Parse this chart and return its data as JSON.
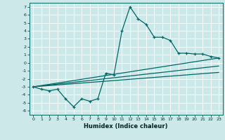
{
  "title": "",
  "xlabel": "Humidex (Indice chaleur)",
  "bg_color": "#cce8e8",
  "grid_color": "#ffffff",
  "line_color": "#006666",
  "xlim": [
    -0.5,
    23.5
  ],
  "ylim": [
    -6.5,
    7.5
  ],
  "xticks": [
    0,
    1,
    2,
    3,
    4,
    5,
    6,
    7,
    8,
    9,
    10,
    11,
    12,
    13,
    14,
    15,
    16,
    17,
    18,
    19,
    20,
    21,
    22,
    23
  ],
  "yticks": [
    -6,
    -5,
    -4,
    -3,
    -2,
    -1,
    0,
    1,
    2,
    3,
    4,
    5,
    6,
    7
  ],
  "series1_x": [
    0,
    1,
    2,
    3,
    4,
    5,
    6,
    7,
    8,
    9,
    10,
    11,
    12,
    13,
    14,
    15,
    16,
    17,
    18,
    19,
    20,
    21,
    22,
    23
  ],
  "series1_y": [
    -3.0,
    -3.3,
    -3.5,
    -3.3,
    -4.5,
    -5.5,
    -4.5,
    -4.8,
    -4.5,
    -1.3,
    -1.5,
    4.0,
    7.0,
    5.5,
    4.8,
    3.2,
    3.2,
    2.8,
    1.2,
    1.2,
    1.1,
    1.1,
    0.8,
    0.6
  ],
  "series2_x": [
    0,
    23
  ],
  "series2_y": [
    -3.0,
    0.6
  ],
  "series3_x": [
    0,
    23
  ],
  "series3_y": [
    -3.0,
    -0.4
  ],
  "series4_x": [
    0,
    23
  ],
  "series4_y": [
    -3.0,
    -1.2
  ],
  "xlabel_fontsize": 6,
  "tick_fontsize": 4.5
}
